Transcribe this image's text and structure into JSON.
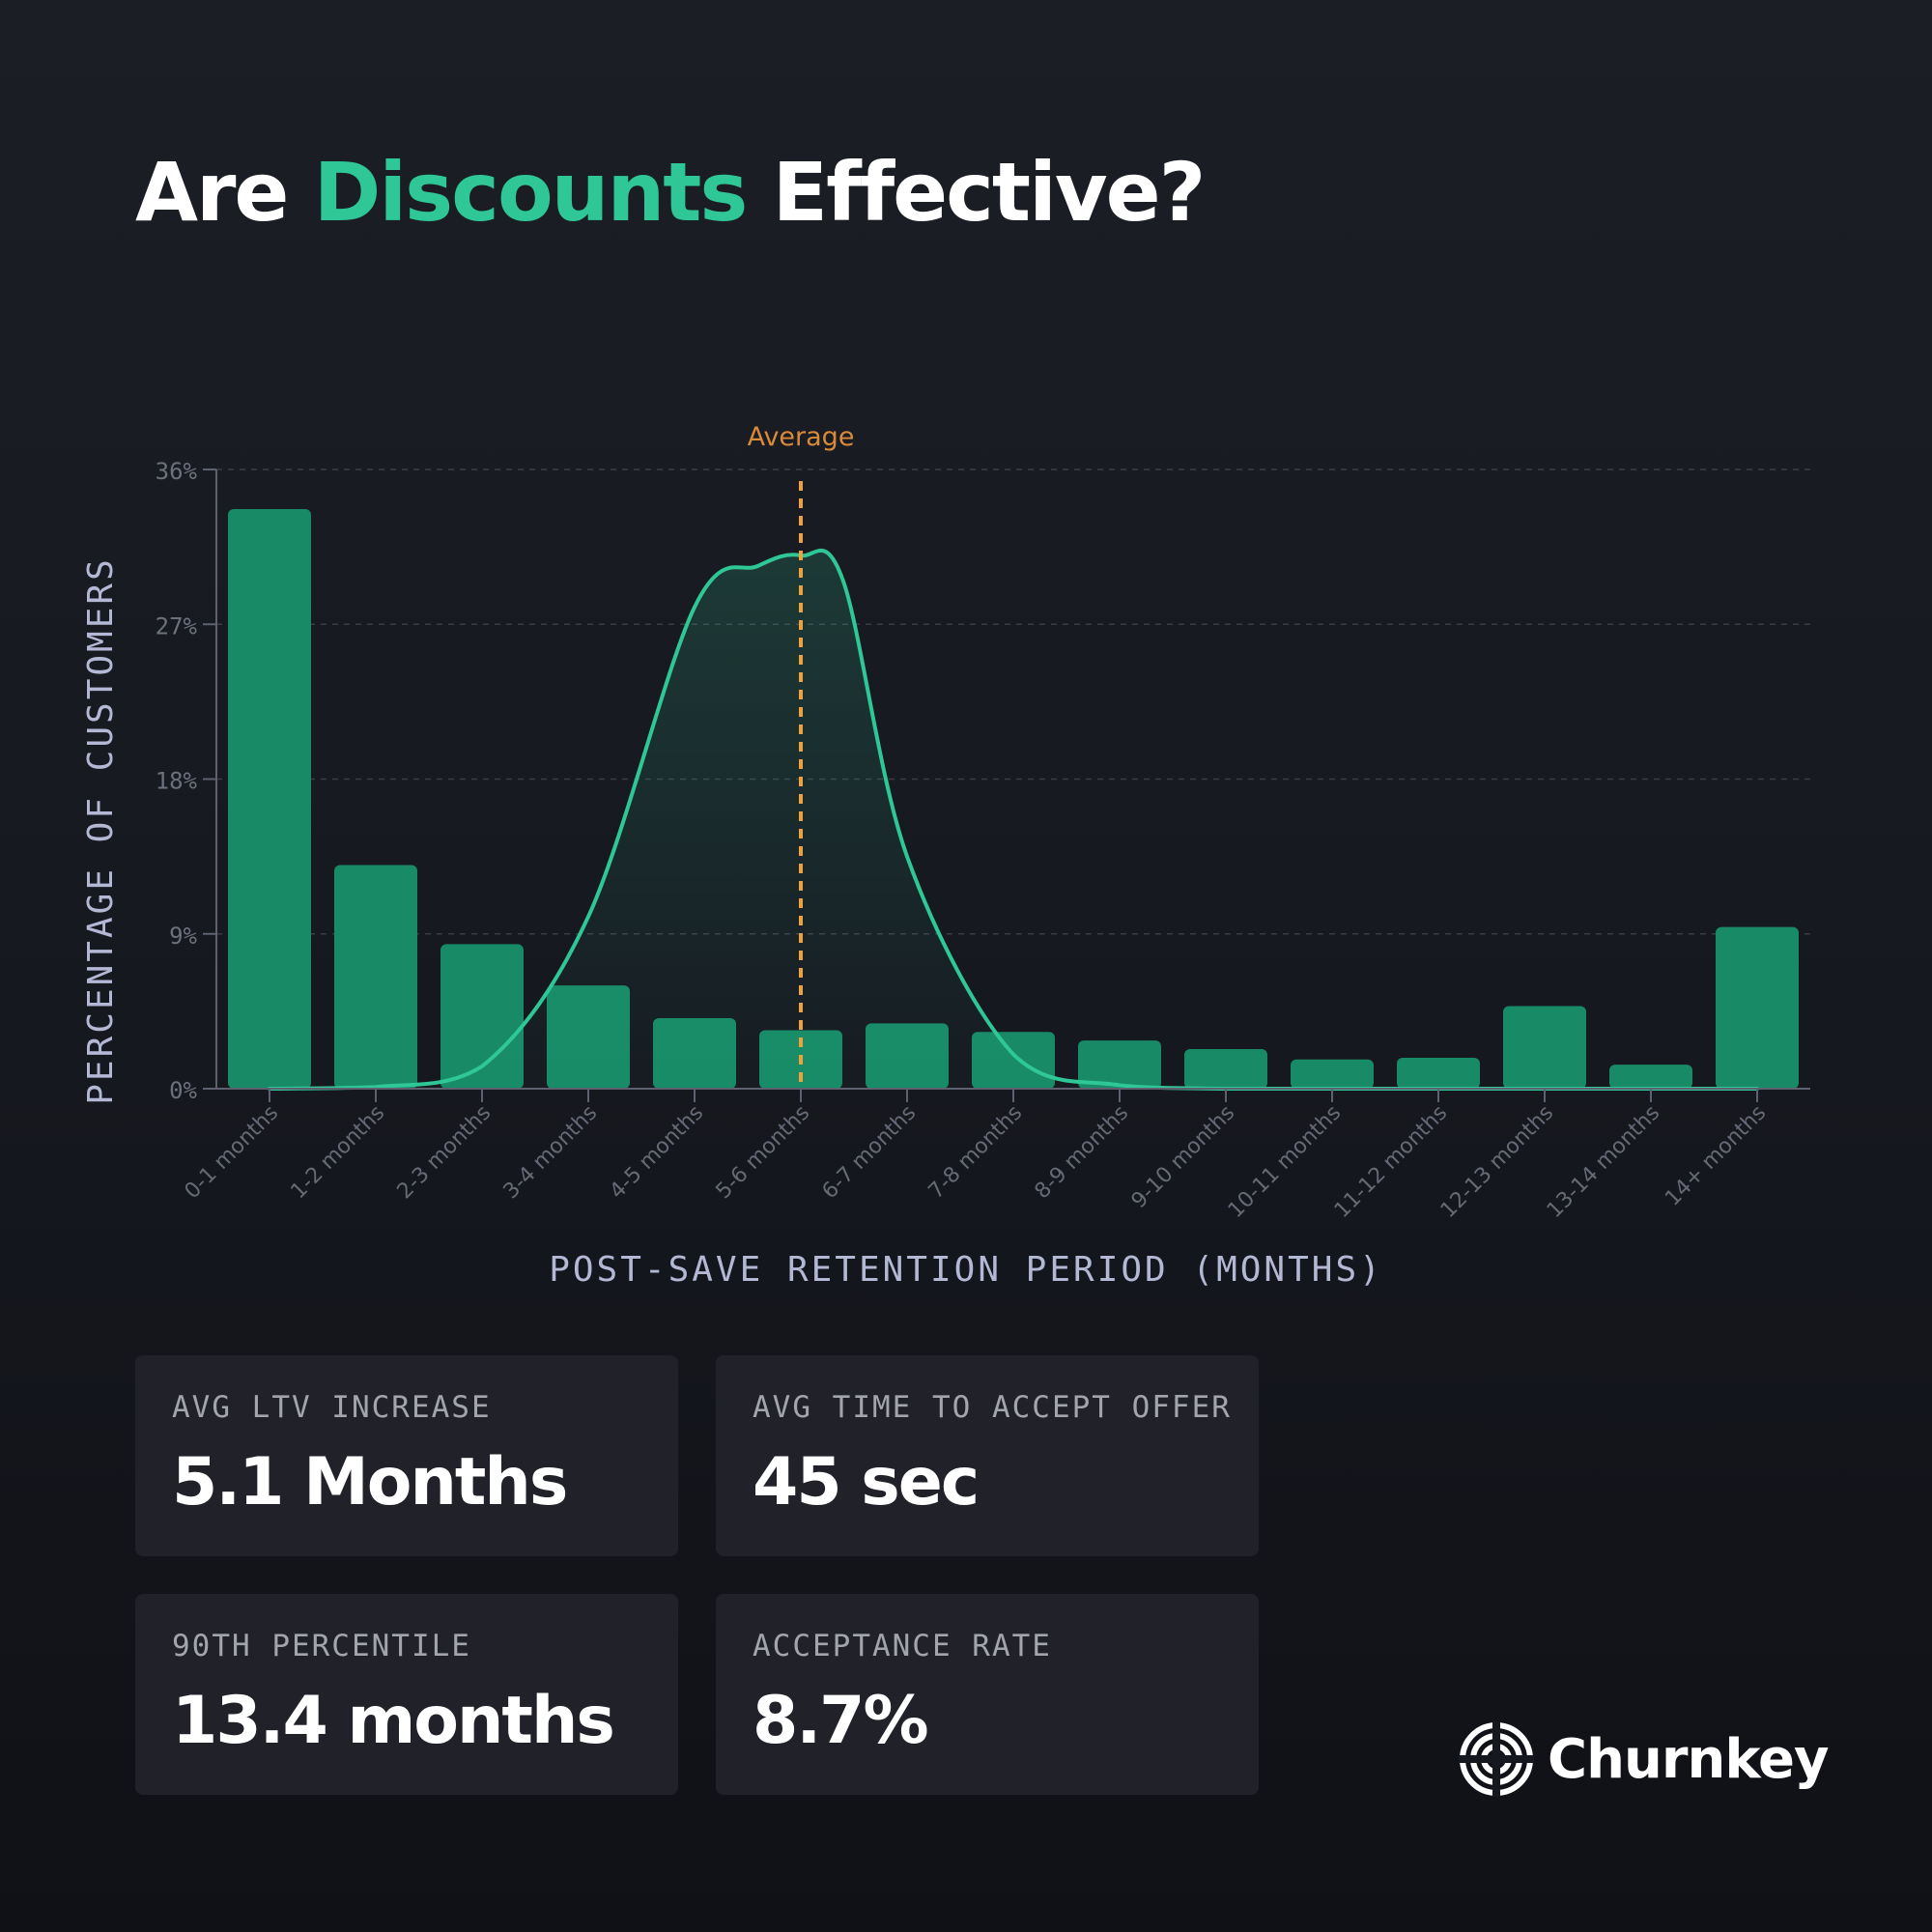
{
  "title": {
    "prefix": "Are ",
    "highlight": "Discounts",
    "suffix": " Effective?"
  },
  "colors": {
    "background": "#1b1e25",
    "accent": "#2ec795",
    "bar": "#188a66",
    "curve": "#2ec795",
    "average_line": "#f0a23a",
    "average_label": "#d98b3a"
  },
  "chart_data": {
    "type": "bar",
    "title": "",
    "xlabel": "POST-SAVE RETENTION PERIOD (MONTHS)",
    "ylabel": "PERCENTAGE OF CUSTOMERS",
    "ylim": [
      0,
      36
    ],
    "y_ticks": [
      "0%",
      "9%",
      "18%",
      "27%",
      "36%"
    ],
    "grid": true,
    "categories": [
      "0-1 months",
      "1-2 months",
      "2-3 months",
      "3-4 months",
      "4-5 months",
      "5-6 months",
      "6-7 months",
      "7-8 months",
      "8-9 months",
      "9-10 months",
      "10-11 months",
      "11-12 months",
      "12-13 months",
      "13-14 months",
      "14+ months"
    ],
    "values": [
      33.7,
      13.0,
      8.4,
      6.0,
      4.1,
      3.4,
      3.8,
      3.3,
      2.8,
      2.3,
      1.7,
      1.8,
      4.8,
      1.4,
      9.4
    ],
    "curve": {
      "type": "area",
      "x": [
        0.0,
        1.0,
        2.0,
        3.0,
        4.0,
        4.6,
        5.0,
        5.4,
        6.0,
        7.0,
        8.0,
        9.0,
        10.0,
        14.0
      ],
      "y": [
        0.0,
        0.1,
        1.3,
        10.0,
        28.0,
        30.4,
        31.0,
        29.5,
        13.5,
        2.0,
        0.2,
        0.0,
        0.0,
        0.0
      ]
    },
    "average": {
      "label": "Average",
      "category_index": 5
    }
  },
  "stats": [
    {
      "label": "AVG LTV INCREASE",
      "value": "5.1 Months"
    },
    {
      "label": "AVG TIME TO ACCEPT OFFER",
      "value": "45 sec"
    },
    {
      "label": "90TH PERCENTILE",
      "value": "13.4 months"
    },
    {
      "label": "ACCEPTANCE RATE",
      "value": "8.7%"
    }
  ],
  "brand": {
    "name": "Churnkey",
    "icon": "churnkey-logo-icon"
  }
}
